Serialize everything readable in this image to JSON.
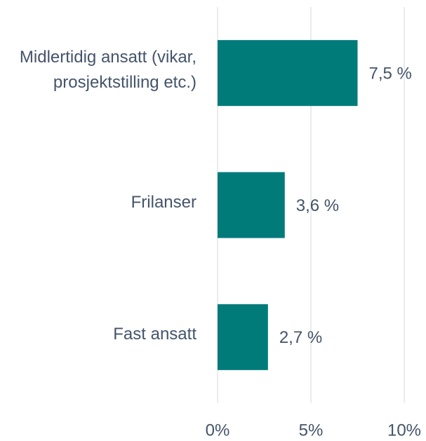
{
  "chart_data": {
    "type": "bar",
    "orientation": "horizontal",
    "categories": [
      "Midlertidig ansatt (vikar, prosjektstilling etc.)",
      "Frilanser",
      "Fast ansatt"
    ],
    "values": [
      7.5,
      3.6,
      2.7
    ],
    "value_labels": [
      "7,5 %",
      "3,6 %",
      "2,7 %"
    ],
    "color": "#007b7a",
    "xlim": [
      0,
      10
    ],
    "xticks": [
      {
        "value": 0,
        "label": "0%"
      },
      {
        "value": 5,
        "label": "5%"
      },
      {
        "value": 10,
        "label": "10%"
      }
    ],
    "grid": true
  }
}
